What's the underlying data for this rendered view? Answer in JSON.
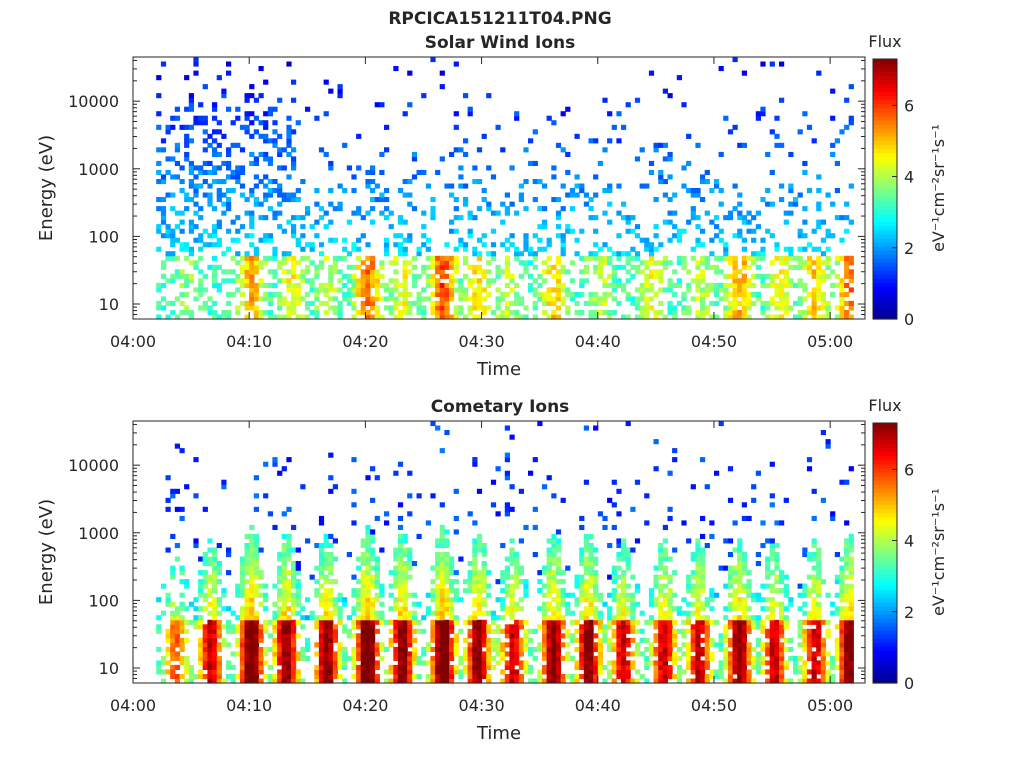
{
  "figure": {
    "title": "RPCICA151211T04.PNG"
  },
  "colorscale": {
    "name": "jet",
    "stops": [
      "#00008f",
      "#0000ff",
      "#0080ff",
      "#00ffff",
      "#80ff80",
      "#ffff00",
      "#ff8000",
      "#ff0000",
      "#800000"
    ],
    "range": [
      0,
      7.3
    ]
  },
  "chart_data": [
    {
      "type": "heatmap",
      "title": "Solar Wind Ions",
      "xlabel": "Time",
      "ylabel": "Energy (eV)",
      "x_range": [
        "04:00",
        "05:03"
      ],
      "x_ticks": [
        "04:00",
        "04:10",
        "04:20",
        "04:30",
        "04:40",
        "04:50",
        "05:00"
      ],
      "y_scale": "log",
      "y_range": [
        6,
        45000
      ],
      "y_ticks": [
        {
          "v": 10,
          "label": "10"
        },
        {
          "v": 100,
          "label": "100"
        },
        {
          "v": 1000,
          "label": "1000"
        },
        {
          "v": 10000,
          "label": "10000"
        }
      ],
      "data_time_range": [
        "04:02",
        "05:02"
      ],
      "colorbar": {
        "title": "Flux",
        "label": "eV⁻¹cm⁻²sr⁻¹s⁻¹",
        "ticks": [
          "0",
          "2",
          "4",
          "6"
        ],
        "range": [
          0,
          7.3
        ]
      },
      "profile": "solar",
      "seed": 11,
      "bursts": [
        {
          "t": 4.5,
          "amp": 0.2
        },
        {
          "t": 10.0,
          "amp": 0.6
        },
        {
          "t": 13.5,
          "amp": 0.4
        },
        {
          "t": 16.5,
          "amp": 0.3
        },
        {
          "t": 20.0,
          "amp": 0.7
        },
        {
          "t": 23.0,
          "amp": 0.4
        },
        {
          "t": 26.5,
          "amp": 0.8
        },
        {
          "t": 29.5,
          "amp": 0.5
        },
        {
          "t": 32.0,
          "amp": 0.3
        },
        {
          "t": 36.0,
          "amp": 0.5
        },
        {
          "t": 40.0,
          "amp": 0.3
        },
        {
          "t": 44.5,
          "amp": 0.4
        },
        {
          "t": 48.5,
          "amp": 0.3
        },
        {
          "t": 52.0,
          "amp": 0.6
        },
        {
          "t": 55.5,
          "amp": 0.4
        },
        {
          "t": 58.5,
          "amp": 0.5
        },
        {
          "t": 61.5,
          "amp": 0.7
        }
      ]
    },
    {
      "type": "heatmap",
      "title": "Cometary Ions",
      "xlabel": "Time",
      "ylabel": "Energy (eV)",
      "x_range": [
        "04:00",
        "05:03"
      ],
      "x_ticks": [
        "04:00",
        "04:10",
        "04:20",
        "04:30",
        "04:40",
        "04:50",
        "05:00"
      ],
      "y_scale": "log",
      "y_range": [
        6,
        45000
      ],
      "y_ticks": [
        {
          "v": 10,
          "label": "10"
        },
        {
          "v": 100,
          "label": "100"
        },
        {
          "v": 1000,
          "label": "1000"
        },
        {
          "v": 10000,
          "label": "10000"
        }
      ],
      "data_time_range": [
        "04:02",
        "05:02"
      ],
      "colorbar": {
        "title": "Flux",
        "label": "eV⁻¹cm⁻²sr⁻¹s⁻¹",
        "ticks": [
          "0",
          "2",
          "4",
          "6"
        ],
        "range": [
          0,
          7.3
        ]
      },
      "profile": "comet",
      "seed": 29,
      "bursts": [
        {
          "t": 3.5,
          "amp": 0.6
        },
        {
          "t": 6.5,
          "amp": 0.8
        },
        {
          "t": 10.0,
          "amp": 1.0
        },
        {
          "t": 13.0,
          "amp": 0.9
        },
        {
          "t": 16.5,
          "amp": 0.9
        },
        {
          "t": 20.0,
          "amp": 1.0
        },
        {
          "t": 23.0,
          "amp": 0.9
        },
        {
          "t": 26.5,
          "amp": 1.0
        },
        {
          "t": 29.5,
          "amp": 0.9
        },
        {
          "t": 32.5,
          "amp": 0.8
        },
        {
          "t": 36.0,
          "amp": 0.9
        },
        {
          "t": 39.0,
          "amp": 0.9
        },
        {
          "t": 42.0,
          "amp": 0.8
        },
        {
          "t": 45.5,
          "amp": 0.8
        },
        {
          "t": 48.5,
          "amp": 0.8
        },
        {
          "t": 52.0,
          "amp": 0.9
        },
        {
          "t": 55.0,
          "amp": 0.8
        },
        {
          "t": 58.5,
          "amp": 0.8
        },
        {
          "t": 61.5,
          "amp": 0.9
        }
      ]
    }
  ]
}
